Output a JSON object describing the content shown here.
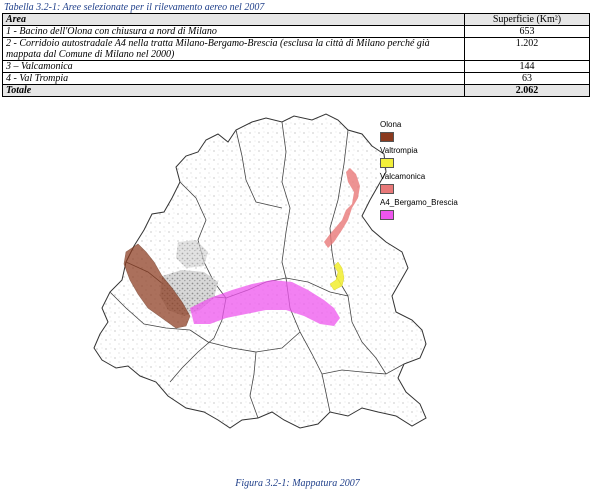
{
  "table": {
    "caption": "Tabella 3.2-1: Aree selezionate per il rilevamento aereo nel 2007",
    "headers": {
      "area": "Area",
      "surface": "Superficie (Km²)"
    },
    "rows": [
      {
        "area": "1 - Bacino dell'Olona con chiusura a nord di Milano",
        "surface": "653"
      },
      {
        "area": "2 - Corridoio autostradale A4 nella tratta Milano-Bergamo-Brescia (esclusa la città di Milano perché già mappata dal Comune di Milano nel 2000)",
        "surface": "1.202"
      },
      {
        "area": "3 – Valcamonica",
        "surface": "144"
      },
      {
        "area": "4 - Val Trompia",
        "surface": "63"
      }
    ],
    "total": {
      "area": "Totale",
      "surface": "2.062"
    }
  },
  "legend": [
    {
      "label": "Olona",
      "color": "#8b3a1e"
    },
    {
      "label": "Valtrompia",
      "color": "#f2ef3a"
    },
    {
      "label": "Valcamonica",
      "color": "#e87878"
    },
    {
      "label": "A4_Bergamo_Brescia",
      "color": "#ee55ee"
    }
  ],
  "figure_caption": "Figura 3.2-1: Mappatura 2007"
}
